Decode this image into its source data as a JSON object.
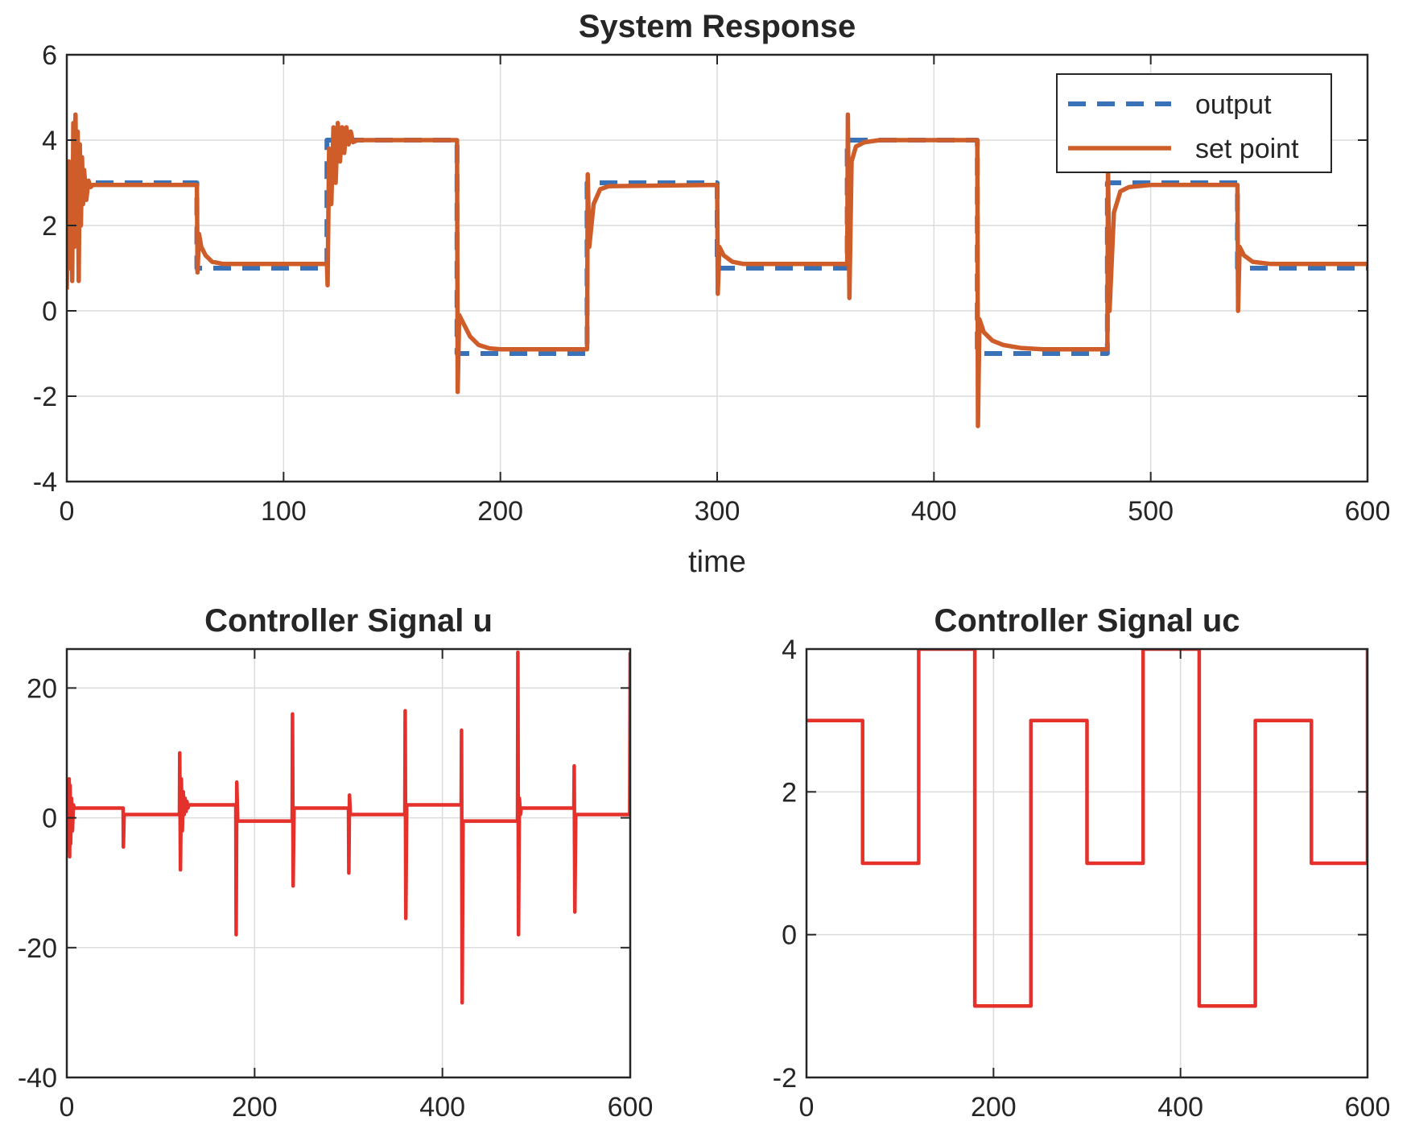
{
  "colors": {
    "output": "#3a72b8",
    "set_point": "#cf5d2a",
    "controller": "#e4312b",
    "axis": "#262626",
    "grid": "#dcdcdc"
  },
  "chart_data": [
    {
      "id": "system-response",
      "type": "line",
      "title": "System Response",
      "xlabel": "time",
      "ylabel": "",
      "xlim": [
        0,
        600
      ],
      "ylim": [
        -4,
        6
      ],
      "xticks": [
        0,
        100,
        200,
        300,
        400,
        500,
        600
      ],
      "yticks": [
        -4,
        -2,
        0,
        2,
        4,
        6
      ],
      "grid": true,
      "legend": {
        "position": "top-right",
        "entries": [
          "output",
          "set point"
        ]
      },
      "series": [
        {
          "name": "output",
          "style": "dashed",
          "steps": [
            [
              0,
              3
            ],
            [
              60,
              1
            ],
            [
              120,
              4
            ],
            [
              180,
              -1
            ],
            [
              240,
              3
            ],
            [
              300,
              1
            ],
            [
              360,
              4
            ],
            [
              420,
              -1
            ],
            [
              480,
              3
            ],
            [
              540,
              1
            ],
            [
              600,
              1
            ]
          ]
        },
        {
          "name": "set point",
          "style": "solid",
          "points": [
            [
              0,
              0.5
            ],
            [
              0.5,
              2.0
            ],
            [
              1,
              3.5
            ],
            [
              1.5,
              1.0
            ],
            [
              2,
              3.4
            ],
            [
              2.5,
              0.7
            ],
            [
              3,
              4.4
            ],
            [
              3.5,
              1.5
            ],
            [
              4,
              4.6
            ],
            [
              4.5,
              2.0
            ],
            [
              5,
              4.2
            ],
            [
              5.5,
              0.7
            ],
            [
              6,
              3.9
            ],
            [
              6.5,
              2.0
            ],
            [
              7,
              3.6
            ],
            [
              7.5,
              2.5
            ],
            [
              8,
              3.3
            ],
            [
              9,
              2.6
            ],
            [
              10,
              3.05
            ],
            [
              11,
              2.9
            ],
            [
              12,
              2.95
            ],
            [
              60,
              2.95
            ],
            [
              60.3,
              0.9
            ],
            [
              61,
              1.8
            ],
            [
              62,
              1.5
            ],
            [
              64,
              1.3
            ],
            [
              67,
              1.15
            ],
            [
              72,
              1.1
            ],
            [
              120,
              1.1
            ],
            [
              120.3,
              0.6
            ],
            [
              121,
              3.8
            ],
            [
              122,
              2.5
            ],
            [
              123,
              4.3
            ],
            [
              124,
              3.0
            ],
            [
              125,
              4.4
            ],
            [
              126,
              3.5
            ],
            [
              127,
              4.3
            ],
            [
              128,
              3.7
            ],
            [
              129,
              4.3
            ],
            [
              130,
              3.9
            ],
            [
              131,
              4.2
            ],
            [
              132,
              3.95
            ],
            [
              134,
              4.0
            ],
            [
              180,
              4.0
            ],
            [
              180.3,
              -1.9
            ],
            [
              181,
              -0.1
            ],
            [
              183,
              -0.3
            ],
            [
              186,
              -0.6
            ],
            [
              190,
              -0.8
            ],
            [
              195,
              -0.88
            ],
            [
              200,
              -0.9
            ],
            [
              240,
              -0.9
            ],
            [
              240.3,
              3.2
            ],
            [
              241,
              1.5
            ],
            [
              243,
              2.5
            ],
            [
              246,
              2.85
            ],
            [
              250,
              2.92
            ],
            [
              300,
              2.95
            ],
            [
              300.3,
              0.4
            ],
            [
              301,
              1.5
            ],
            [
              303,
              1.3
            ],
            [
              307,
              1.15
            ],
            [
              312,
              1.1
            ],
            [
              360,
              1.1
            ],
            [
              360.3,
              4.6
            ],
            [
              361,
              0.3
            ],
            [
              362,
              3.5
            ],
            [
              364,
              3.85
            ],
            [
              368,
              3.95
            ],
            [
              375,
              4.0
            ],
            [
              420,
              4.0
            ],
            [
              420.3,
              -2.7
            ],
            [
              421,
              -0.2
            ],
            [
              423,
              -0.5
            ],
            [
              427,
              -0.7
            ],
            [
              432,
              -0.8
            ],
            [
              440,
              -0.87
            ],
            [
              450,
              -0.9
            ],
            [
              480,
              -0.9
            ],
            [
              480.3,
              3.4
            ],
            [
              481,
              0.0
            ],
            [
              483,
              2.3
            ],
            [
              486,
              2.8
            ],
            [
              490,
              2.9
            ],
            [
              500,
              2.95
            ],
            [
              540,
              2.95
            ],
            [
              540.3,
              0.0
            ],
            [
              541,
              1.5
            ],
            [
              543,
              1.3
            ],
            [
              547,
              1.15
            ],
            [
              555,
              1.1
            ],
            [
              600,
              1.1
            ]
          ]
        }
      ]
    },
    {
      "id": "controller-u",
      "type": "line",
      "title": "Controller Signal  u",
      "xlabel": "",
      "ylabel": "",
      "xlim": [
        0,
        600
      ],
      "ylim": [
        -40,
        26
      ],
      "xticks": [
        0,
        200,
        400,
        600
      ],
      "yticks": [
        -40,
        -20,
        0,
        20
      ],
      "grid": true,
      "series": [
        {
          "style": "solid",
          "points": [
            [
              0,
              0
            ],
            [
              0.5,
              4
            ],
            [
              1,
              -4
            ],
            [
              1.5,
              5
            ],
            [
              2,
              -5
            ],
            [
              2.5,
              6
            ],
            [
              3,
              -6
            ],
            [
              3.5,
              5
            ],
            [
              4,
              -4
            ],
            [
              5,
              3
            ],
            [
              6,
              -2
            ],
            [
              7,
              2
            ],
            [
              8,
              1.5
            ],
            [
              60,
              1.5
            ],
            [
              60.3,
              -4.5
            ],
            [
              61,
              0.5
            ],
            [
              120,
              0.5
            ],
            [
              120.3,
              10
            ],
            [
              121,
              -8
            ],
            [
              122,
              6
            ],
            [
              123,
              -2
            ],
            [
              124,
              4
            ],
            [
              125,
              0.5
            ],
            [
              126,
              3
            ],
            [
              127,
              1
            ],
            [
              128,
              2.5
            ],
            [
              129,
              1.5
            ],
            [
              130,
              2
            ],
            [
              180,
              2
            ],
            [
              180.3,
              -18
            ],
            [
              181,
              5.5
            ],
            [
              182,
              -0.5
            ],
            [
              240,
              -0.5
            ],
            [
              240.3,
              16
            ],
            [
              241,
              -10.5
            ],
            [
              242,
              1.5
            ],
            [
              300,
              1.5
            ],
            [
              300.3,
              -8.5
            ],
            [
              301,
              3.5
            ],
            [
              302,
              0.5
            ],
            [
              360,
              0.5
            ],
            [
              360.3,
              16.5
            ],
            [
              361,
              -15.5
            ],
            [
              362,
              2
            ],
            [
              420,
              2
            ],
            [
              420.3,
              13.5
            ],
            [
              421,
              -28.5
            ],
            [
              422,
              -0.5
            ],
            [
              480,
              -0.5
            ],
            [
              480.3,
              25.5
            ],
            [
              481,
              -18
            ],
            [
              482,
              3
            ],
            [
              483,
              0.5
            ],
            [
              484,
              1.5
            ],
            [
              540,
              1.5
            ],
            [
              540.3,
              8
            ],
            [
              541,
              -14.5
            ],
            [
              542,
              0.5
            ],
            [
              599.5,
              0.5
            ],
            [
              600,
              25.5
            ]
          ]
        }
      ]
    },
    {
      "id": "controller-uc",
      "type": "line",
      "title": "Controller Signal  uc",
      "xlabel": "",
      "ylabel": "",
      "xlim": [
        0,
        600
      ],
      "ylim": [
        -2,
        4
      ],
      "xticks": [
        0,
        200,
        400,
        600
      ],
      "yticks": [
        -2,
        0,
        2,
        4
      ],
      "grid": true,
      "series": [
        {
          "style": "solid",
          "steps": [
            [
              0,
              3
            ],
            [
              60,
              1
            ],
            [
              120,
              4
            ],
            [
              180,
              -1
            ],
            [
              240,
              3
            ],
            [
              300,
              1
            ],
            [
              360,
              4
            ],
            [
              420,
              -1
            ],
            [
              480,
              3
            ],
            [
              540,
              1
            ],
            [
              600,
              4
            ]
          ]
        }
      ]
    }
  ]
}
